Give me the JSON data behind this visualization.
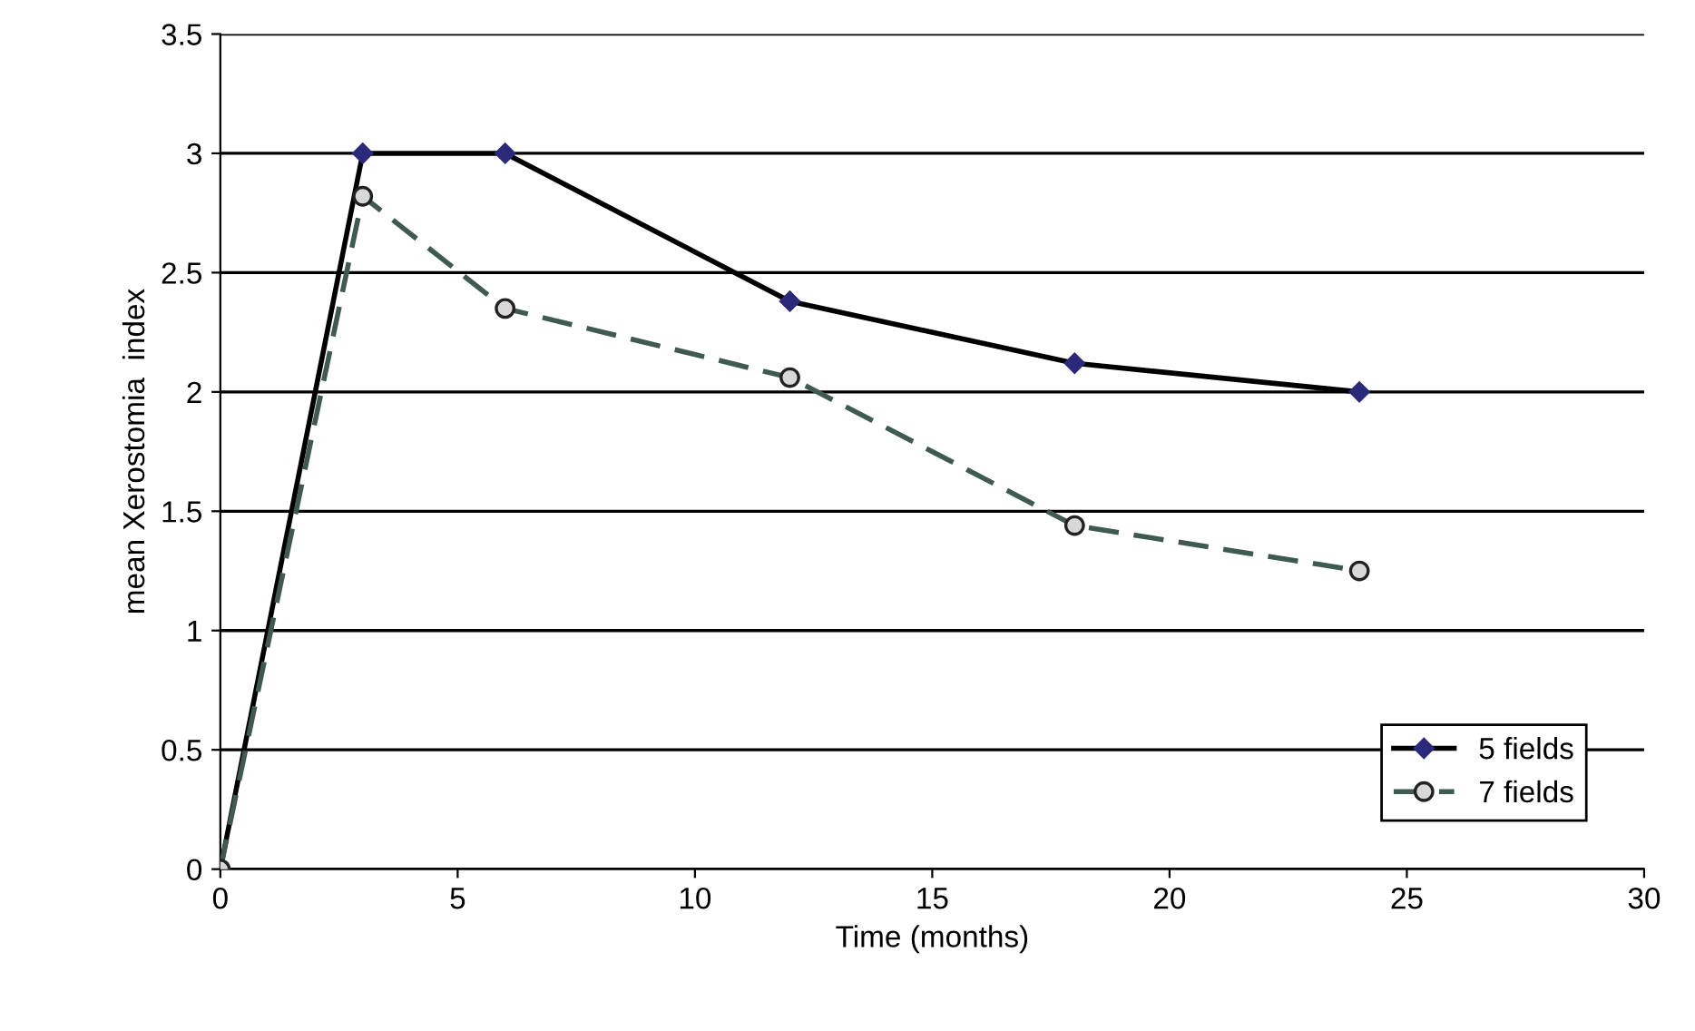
{
  "chart_data": {
    "type": "line",
    "xlabel": "Time (months)",
    "ylabel": "mean Xerostomia  index",
    "x": [
      0,
      3,
      6,
      12,
      18,
      24
    ],
    "series": [
      {
        "name": "5 fields",
        "color": "#000000",
        "marker": "diamond",
        "line_style": "solid",
        "values": [
          0,
          3,
          3,
          2.38,
          2.12,
          2.0
        ]
      },
      {
        "name": "7 fields",
        "color": "#3f5a52",
        "marker": "circle",
        "line_style": "dashed",
        "values": [
          0,
          2.82,
          2.35,
          2.06,
          1.44,
          1.25
        ]
      }
    ],
    "xlim": [
      0,
      30
    ],
    "xticks": [
      0,
      5,
      10,
      15,
      20,
      25,
      30
    ],
    "ylim": [
      0,
      3.5
    ],
    "yticks": [
      0,
      0.5,
      1,
      1.5,
      2,
      2.5,
      3,
      3.5
    ],
    "grid": "y",
    "legend": "bottom right"
  }
}
